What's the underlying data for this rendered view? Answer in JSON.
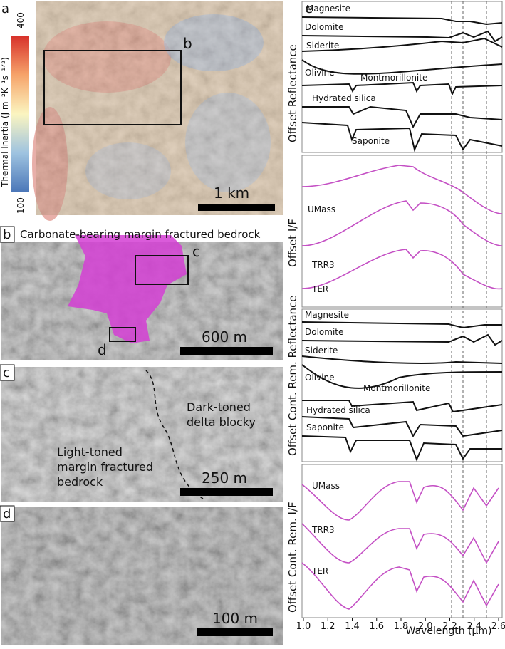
{
  "panels": {
    "a": {
      "label": "a",
      "colorbar_title": "Thermal Inertia (J m⁻²K⁻¹s⁻¹ᐟ²)",
      "colorbar_max": "400",
      "colorbar_min": "100",
      "box_label": "b",
      "scale": "1 km"
    },
    "b": {
      "label": "b",
      "title": "Carbonate-bearing margin fractured bedrock",
      "box_labels": [
        "c",
        "d"
      ],
      "scale": "600 m"
    },
    "c": {
      "label": "c",
      "dark_toned": [
        "Dark-toned",
        "delta blocky"
      ],
      "light_toned": [
        "Light-toned",
        "margin fractured",
        "bedrock"
      ],
      "scale": "250 m"
    },
    "d": {
      "label": "d",
      "scale": "100 m"
    },
    "e": {
      "label": "e",
      "y_labels": [
        "Offset Reflectance",
        "Offset I/F",
        "Offset Cont. Rem. Reflectance",
        "Offset Cont. Rem. I/F"
      ],
      "library": [
        "Magnesite",
        "Dolomite",
        "Siderite",
        "Olivine",
        "Montmorillonite",
        "Hydrated silica",
        "Saponite"
      ],
      "observed": [
        "UMass",
        "TRR3",
        "TER"
      ],
      "x_label": "Wavelength (μm)",
      "xlim": [
        1.0,
        2.6
      ],
      "xticks": [
        {
          "value": 1.0,
          "label": "1.0"
        },
        1.2,
        1.4,
        1.6,
        1.8,
        {
          "value": 2.0,
          "label": "2.0"
        },
        2.2,
        2.4,
        2.6
      ]
    }
  }
}
